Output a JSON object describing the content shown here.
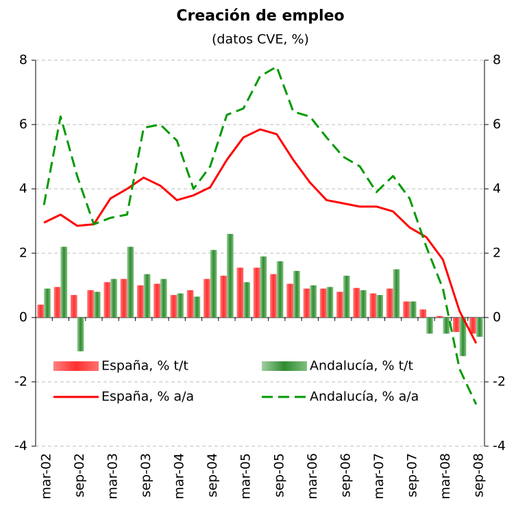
{
  "chart_data": {
    "type": "bar",
    "title": "Creación de empleo",
    "subtitle": "(datos CVE, %)",
    "categories": [
      "mar-02",
      null,
      "sep-02",
      null,
      "mar-03",
      null,
      "sep-03",
      null,
      "mar-04",
      null,
      "sep-04",
      null,
      "mar-05",
      null,
      "sep-05",
      null,
      "mar-06",
      null,
      "sep-06",
      null,
      "mar-07",
      null,
      "sep-07",
      null,
      "mar-08",
      null,
      "sep-08"
    ],
    "series": [
      {
        "name": "España, % t/t",
        "type": "bar",
        "color": "#ff4040",
        "values": [
          0.4,
          0.95,
          0.7,
          0.85,
          1.1,
          1.2,
          1.0,
          1.05,
          0.7,
          0.85,
          1.2,
          1.3,
          1.55,
          1.55,
          1.35,
          1.05,
          0.9,
          0.9,
          0.8,
          0.92,
          0.75,
          0.9,
          0.5,
          0.25,
          0.05,
          -0.45,
          -0.5
        ]
      },
      {
        "name": "Andalucía, % t/t",
        "type": "bar",
        "color": "#2e8b2e",
        "values": [
          0.9,
          2.2,
          -1.05,
          0.8,
          1.2,
          2.2,
          1.35,
          1.2,
          0.75,
          0.65,
          2.1,
          2.6,
          1.1,
          1.9,
          1.75,
          1.45,
          1.0,
          0.95,
          1.3,
          0.85,
          0.7,
          1.5,
          0.5,
          -0.5,
          -0.5,
          -1.2,
          -0.6
        ]
      },
      {
        "name": "España, % a/a",
        "type": "line",
        "color": "#ff0000",
        "dashed": false,
        "values": [
          2.95,
          3.2,
          2.85,
          2.9,
          3.7,
          4.0,
          4.35,
          4.1,
          3.65,
          3.8,
          4.05,
          4.9,
          5.6,
          5.85,
          5.7,
          4.9,
          4.2,
          3.65,
          3.55,
          3.45,
          3.45,
          3.3,
          2.8,
          2.5,
          1.8,
          0.2,
          -0.8
        ]
      },
      {
        "name": "Andalucía, % a/a",
        "type": "line",
        "color": "#009900",
        "dashed": true,
        "values": [
          3.5,
          6.25,
          4.4,
          2.9,
          3.1,
          3.2,
          5.9,
          6.0,
          5.5,
          4.0,
          4.7,
          6.3,
          6.5,
          7.5,
          7.8,
          6.4,
          6.25,
          5.6,
          5.0,
          4.7,
          3.9,
          4.4,
          3.7,
          2.2,
          0.9,
          -1.6,
          -2.7
        ]
      }
    ],
    "ylim": [
      -4,
      8
    ],
    "yticks": [
      -4,
      -2,
      0,
      2,
      4,
      6,
      8
    ],
    "y2lim": [
      -4,
      8
    ],
    "y2ticks": [
      -4,
      -2,
      0,
      2,
      4,
      6,
      8
    ],
    "grid": true,
    "legend": "lower left"
  }
}
